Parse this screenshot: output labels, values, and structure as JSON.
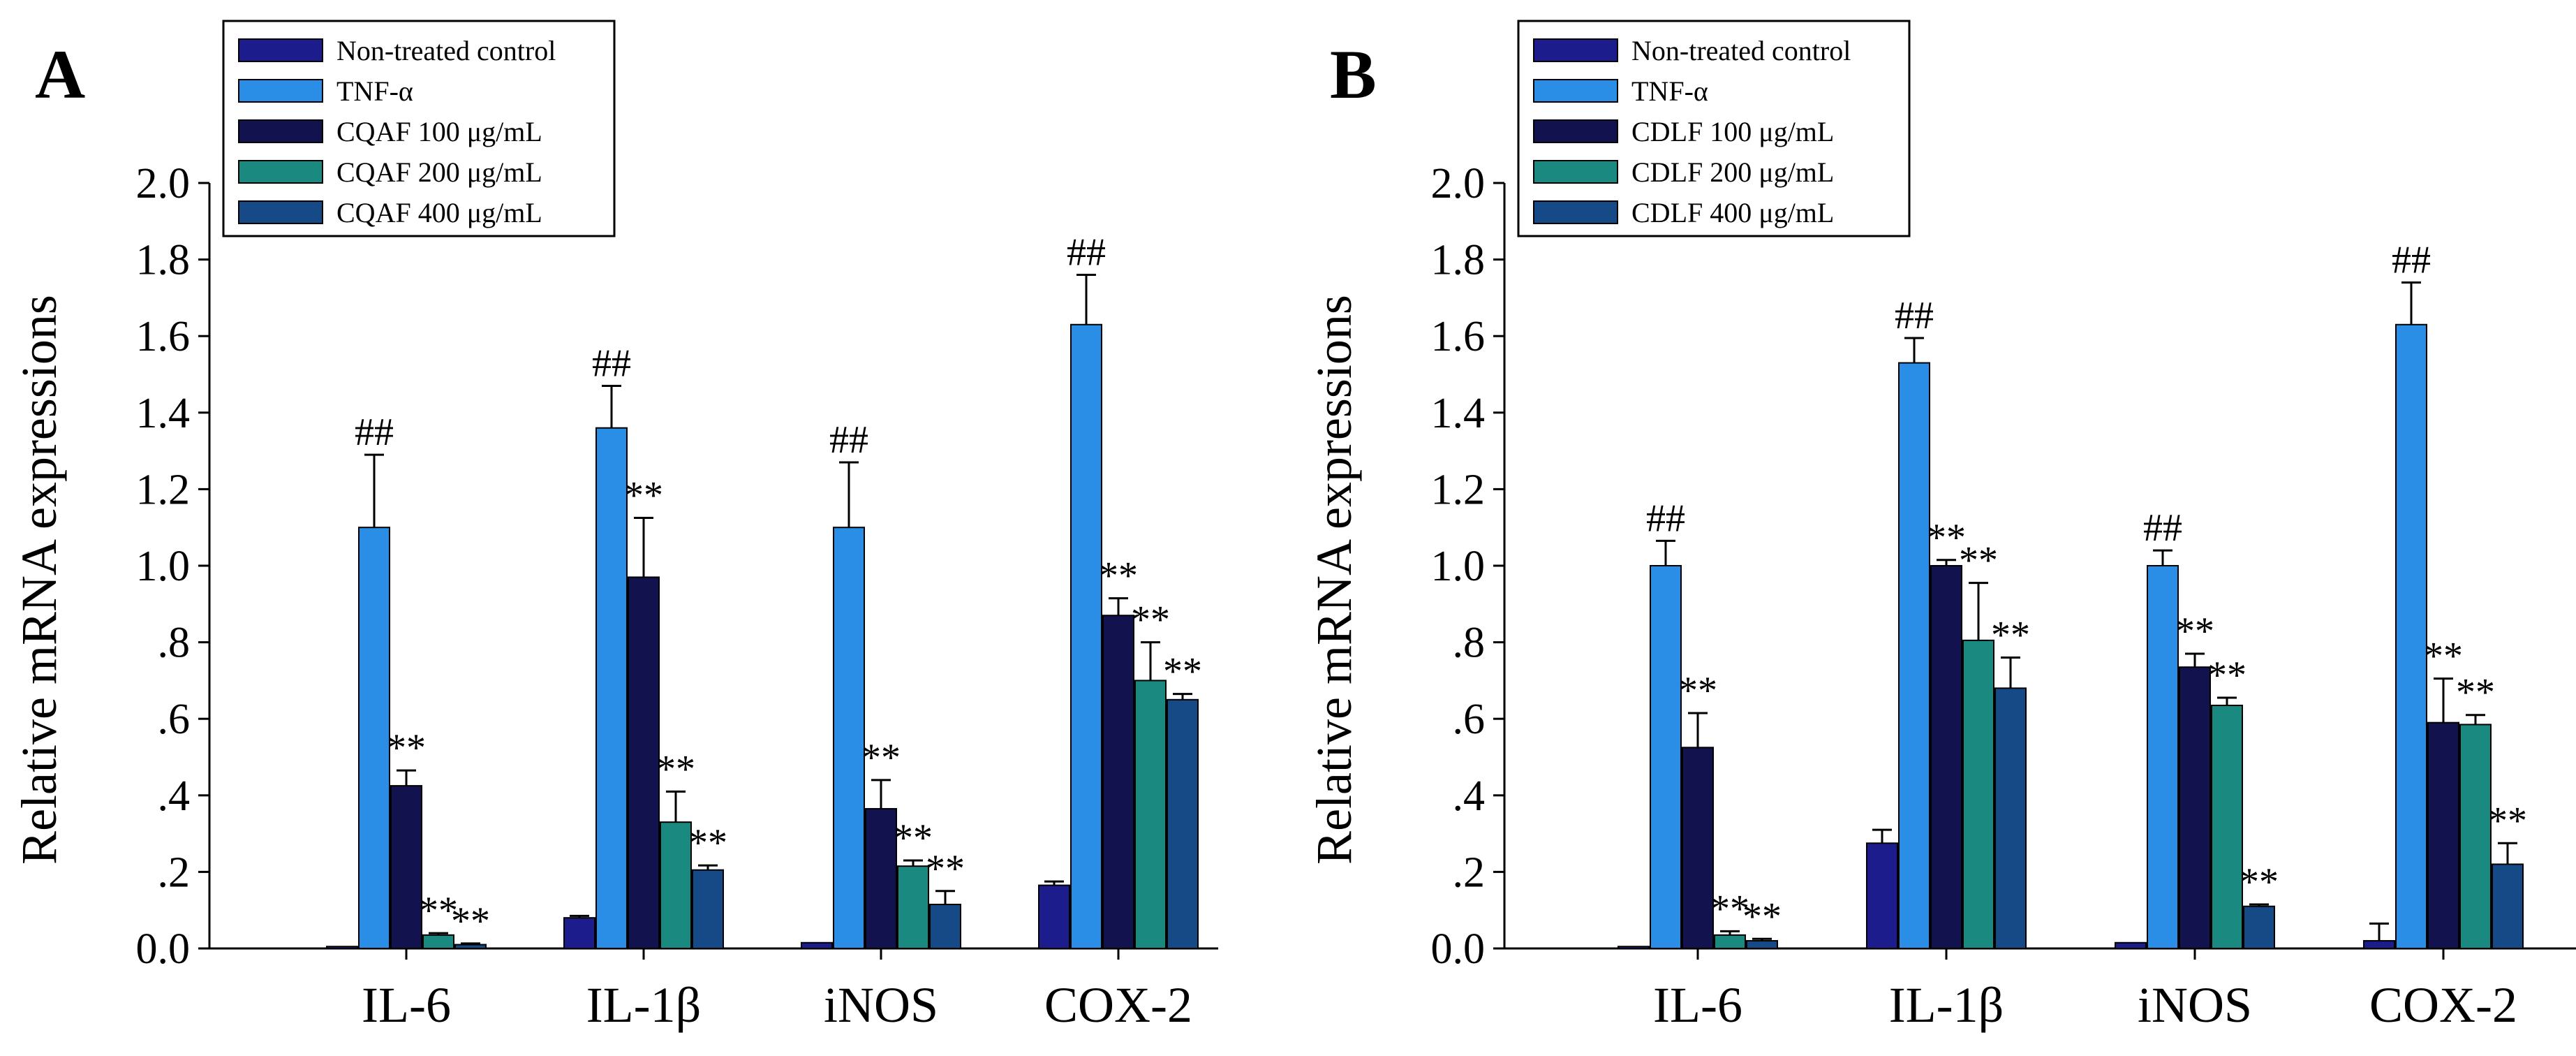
{
  "figure": {
    "background": "#ffffff"
  },
  "chart_data": [
    {
      "panel": "A",
      "type": "bar",
      "ylabel": "Relative mRNA expressions",
      "xlabel": "",
      "ylim": [
        0,
        2.0
      ],
      "yticks": [
        0,
        0.2,
        0.4,
        0.6,
        0.8,
        1.0,
        1.2,
        1.4,
        1.6,
        1.8,
        2.0
      ],
      "ytick_labels": [
        "0.0",
        ".2",
        ".4",
        ".6",
        ".8",
        "1.0",
        "1.2",
        "1.4",
        "1.6",
        "1.8",
        "2.0"
      ],
      "categories": [
        "IL-6",
        "IL-1β",
        "iNOS",
        "COX-2"
      ],
      "legend_position": "top-left",
      "series": [
        {
          "name": "Non-treated control",
          "color": "#1c1c8c",
          "values": [
            0.005,
            0.08,
            0.015,
            0.165
          ],
          "errors": [
            0.0,
            0.005,
            0.0,
            0.01
          ],
          "labels": [
            "",
            "",
            "",
            ""
          ]
        },
        {
          "name": "TNF-α",
          "color": "#2a8ee6",
          "values": [
            1.1,
            1.36,
            1.1,
            1.63
          ],
          "errors": [
            0.19,
            0.11,
            0.17,
            0.13
          ],
          "labels": [
            "##",
            "##",
            "##",
            "##"
          ]
        },
        {
          "name": "CQAF 100 μg/mL",
          "color": "#12124f",
          "values": [
            0.425,
            0.97,
            0.365,
            0.87
          ],
          "errors": [
            0.04,
            0.155,
            0.075,
            0.045
          ],
          "labels": [
            "**",
            "**",
            "**",
            "**"
          ]
        },
        {
          "name": "CQAF 200 μg/mL",
          "color": "#1a8a80",
          "values": [
            0.035,
            0.33,
            0.215,
            0.7
          ],
          "errors": [
            0.005,
            0.08,
            0.015,
            0.1
          ],
          "labels": [
            "**",
            "**",
            "**",
            "**"
          ]
        },
        {
          "name": "CQAF 400 μg/mL",
          "color": "#164a86",
          "values": [
            0.01,
            0.205,
            0.115,
            0.65
          ],
          "errors": [
            0.003,
            0.012,
            0.035,
            0.015
          ],
          "labels": [
            "**",
            "**",
            "**",
            "**"
          ]
        }
      ]
    },
    {
      "panel": "B",
      "type": "bar",
      "ylabel": "Relative mRNA expressions",
      "xlabel": "",
      "ylim": [
        0,
        2.0
      ],
      "yticks": [
        0,
        0.2,
        0.4,
        0.6,
        0.8,
        1.0,
        1.2,
        1.4,
        1.6,
        1.8,
        2.0
      ],
      "ytick_labels": [
        "0.0",
        ".2",
        ".4",
        ".6",
        ".8",
        "1.0",
        "1.2",
        "1.4",
        "1.6",
        "1.8",
        "2.0"
      ],
      "categories": [
        "IL-6",
        "IL-1β",
        "iNOS",
        "COX-2"
      ],
      "legend_position": "top-left",
      "series": [
        {
          "name": "Non-treated control",
          "color": "#1c1c8c",
          "values": [
            0.005,
            0.275,
            0.015,
            0.02
          ],
          "errors": [
            0.0,
            0.035,
            0.0,
            0.045
          ],
          "labels": [
            "",
            "",
            "",
            ""
          ]
        },
        {
          "name": "TNF-α",
          "color": "#2a8ee6",
          "values": [
            1.0,
            1.53,
            1.0,
            1.63
          ],
          "errors": [
            0.065,
            0.065,
            0.04,
            0.11
          ],
          "labels": [
            "##",
            "##",
            "##",
            "##"
          ]
        },
        {
          "name": "CDLF 100 μg/mL",
          "color": "#12124f",
          "values": [
            0.525,
            1.0,
            0.735,
            0.59
          ],
          "errors": [
            0.09,
            0.015,
            0.035,
            0.115
          ],
          "labels": [
            "**",
            "**",
            "**",
            "**"
          ]
        },
        {
          "name": "CDLF 200 μg/mL",
          "color": "#1a8a80",
          "values": [
            0.035,
            0.805,
            0.635,
            0.585
          ],
          "errors": [
            0.01,
            0.15,
            0.02,
            0.025
          ],
          "labels": [
            "**",
            "**",
            "**",
            "**"
          ]
        },
        {
          "name": "CDLF 400 μg/mL",
          "color": "#164a86",
          "values": [
            0.02,
            0.68,
            0.11,
            0.22
          ],
          "errors": [
            0.005,
            0.08,
            0.005,
            0.055
          ],
          "labels": [
            "**",
            "**",
            "**",
            "**"
          ]
        }
      ]
    }
  ]
}
